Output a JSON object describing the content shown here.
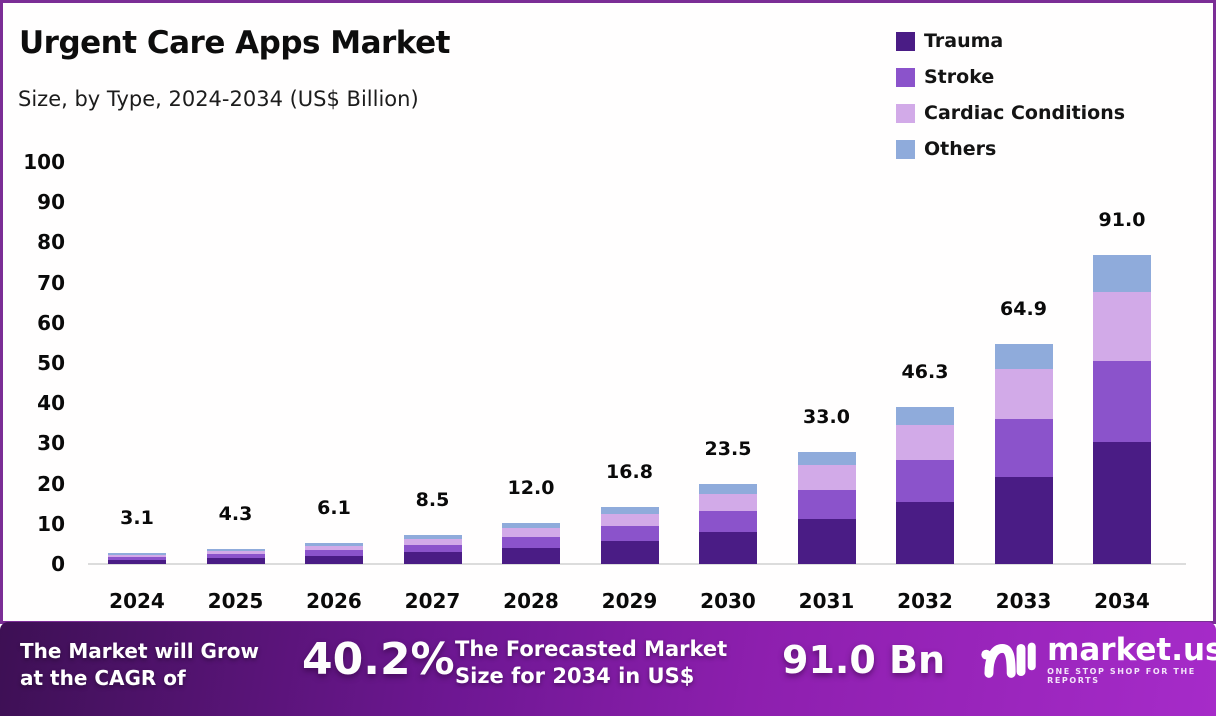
{
  "header": {
    "title": "Urgent Care Apps Market",
    "subtitle": "Size, by Type, 2024-2034 (US$ Billion)"
  },
  "colors": {
    "border": "#7B2D96",
    "trauma": "#4A1C85",
    "stroke": "#8B53CB",
    "cardiac": "#D2AAE8",
    "others": "#8FABDB",
    "baseline": "#DCDCDC",
    "banner_gradient_left": "#3D1054",
    "banner_gradient_mid": "#8D1FAE",
    "banner_gradient_right": "#A62BC9",
    "text": "#0A0A0A"
  },
  "chart_data": {
    "type": "bar",
    "stacked": true,
    "title": "Urgent Care Apps Market",
    "subtitle": "Size, by Type, 2024-2034 (US$ Billion)",
    "unit": "US$ Billion",
    "categories": [
      "2024",
      "2025",
      "2026",
      "2027",
      "2028",
      "2029",
      "2030",
      "2031",
      "2032",
      "2033",
      "2034"
    ],
    "totals": [
      3.1,
      4.3,
      6.1,
      8.5,
      12.0,
      16.8,
      23.5,
      33.0,
      46.3,
      64.9,
      91.0
    ],
    "total_labels": [
      "3.1",
      "4.3",
      "6.1",
      "8.5",
      "12.0",
      "16.8",
      "23.5",
      "33.0",
      "46.3",
      "64.9",
      "91.0"
    ],
    "series": [
      {
        "name": "Trauma",
        "color": "#4A1C85",
        "values": [
          1.2,
          1.7,
          2.4,
          3.4,
          4.8,
          6.7,
          9.3,
          13.1,
          18.3,
          25.7,
          36.0
        ]
      },
      {
        "name": "Stroke",
        "color": "#8B53CB",
        "values": [
          0.8,
          1.1,
          1.6,
          2.2,
          3.2,
          4.4,
          6.2,
          8.7,
          12.2,
          17.1,
          23.9
        ]
      },
      {
        "name": "Cardiac Conditions",
        "color": "#D2AAE8",
        "values": [
          0.7,
          1.0,
          1.4,
          1.9,
          2.7,
          3.7,
          5.2,
          7.4,
          10.3,
          14.5,
          20.3
        ]
      },
      {
        "name": "Others",
        "color": "#8FABDB",
        "values": [
          0.4,
          0.5,
          0.7,
          1.0,
          1.3,
          2.0,
          2.8,
          3.8,
          5.5,
          7.6,
          10.8
        ]
      }
    ],
    "xlabel": "",
    "ylabel": "",
    "ylim": [
      0,
      100
    ],
    "yticks": [
      0,
      10,
      20,
      30,
      40,
      50,
      60,
      70,
      80,
      90,
      100
    ],
    "grid": false,
    "legend_position": "top-right",
    "bar_display_scale": 0.845
  },
  "banner": {
    "left_line1": "The Market will Grow",
    "left_line2": "at the CAGR of",
    "cagr": "40.2%",
    "mid_line1": "The Forecasted Market",
    "mid_line2": "Size for 2034 in US$",
    "forecast": "91.0 Bn",
    "logo_name": "market.us",
    "logo_tagline": "ONE STOP SHOP FOR THE REPORTS"
  }
}
